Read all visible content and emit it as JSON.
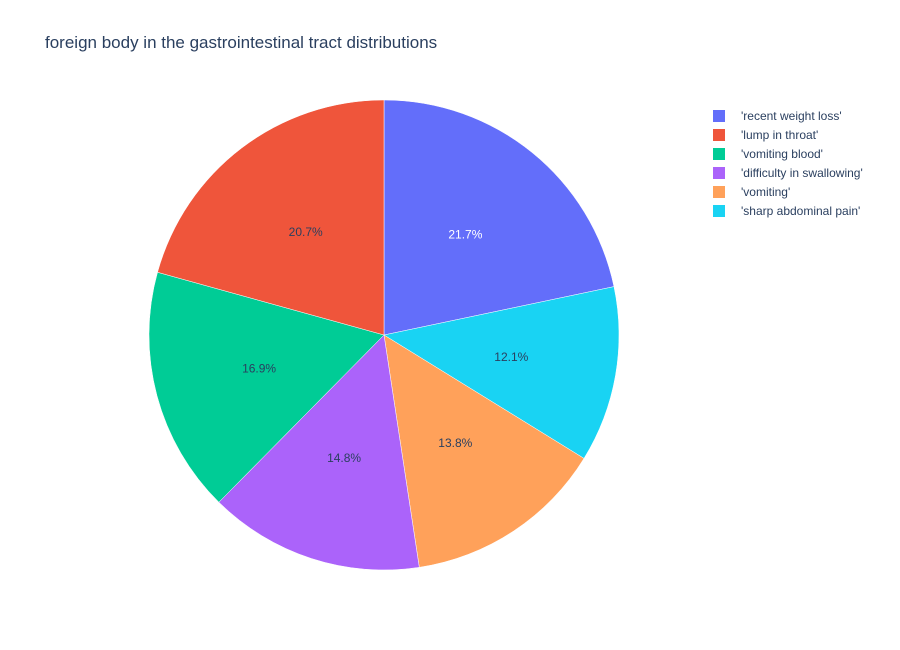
{
  "chart_data": {
    "type": "pie",
    "title": "foreign body in the gastrointestinal tract distributions",
    "categories": [
      "'recent weight loss'",
      "'lump in throat'",
      "'vomiting blood'",
      "'difficulty in swallowing'",
      "'vomiting'",
      "'sharp abdominal pain'"
    ],
    "values": [
      21.7,
      20.7,
      16.9,
      14.8,
      13.8,
      12.1
    ],
    "value_labels": [
      "21.7%",
      "20.7%",
      "16.9%",
      "14.8%",
      "13.8%",
      "12.1%"
    ],
    "slice_order_clockwise_from_top": [
      "'recent weight loss'",
      "'sharp abdominal pain'",
      "'vomiting'",
      "'difficulty in swallowing'",
      "'vomiting blood'",
      "'lump in throat'"
    ],
    "colors": [
      "#636efa",
      "#ef553b",
      "#00cc96",
      "#ab63fa",
      "#ffa15a",
      "#19d3f3"
    ],
    "label_text_colors": [
      "#ffffff",
      "#2a3f5f",
      "#2a3f5f",
      "#2a3f5f",
      "#2a3f5f",
      "#2a3f5f"
    ],
    "legend_position": "top-right"
  }
}
